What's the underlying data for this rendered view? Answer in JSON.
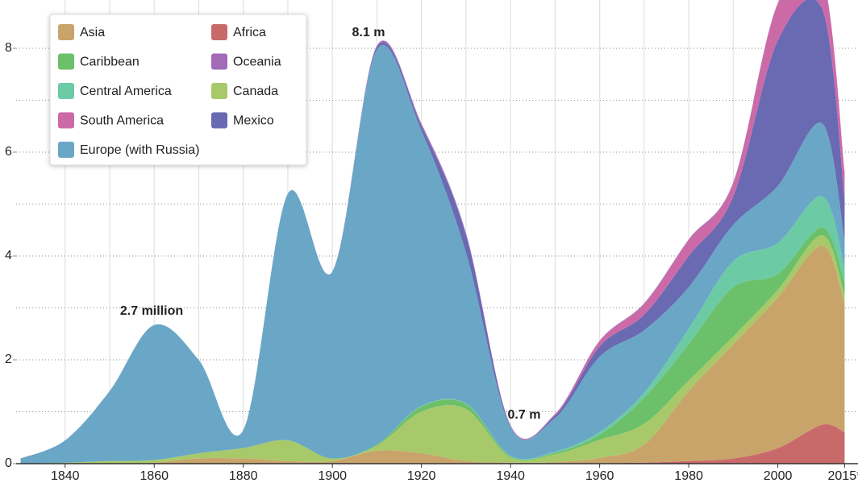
{
  "chart_data": {
    "type": "stacked-area",
    "x": [
      1830,
      1840,
      1850,
      1860,
      1870,
      1880,
      1890,
      1900,
      1910,
      1920,
      1930,
      1940,
      1950,
      1960,
      1970,
      1980,
      1990,
      2000,
      2010,
      2015
    ],
    "series": [
      {
        "name": "Asia",
        "color": "#c9a46a",
        "values": [
          0,
          0,
          0,
          0.02,
          0.1,
          0.1,
          0.05,
          0.05,
          0.25,
          0.2,
          0.05,
          0.02,
          0.03,
          0.1,
          0.35,
          1.35,
          2.2,
          2.9,
          3.45,
          2.5
        ]
      },
      {
        "name": "Caribbean",
        "color": "#6cc06a",
        "values": [
          0,
          0,
          0,
          0,
          0,
          0,
          0,
          0,
          0.02,
          0.1,
          0.1,
          0.02,
          0.03,
          0.1,
          0.5,
          0.7,
          0.95,
          0.3,
          0.15,
          0.25
        ]
      },
      {
        "name": "Central America",
        "color": "#6ccaa5",
        "values": [
          0,
          0,
          0,
          0,
          0,
          0,
          0,
          0,
          0,
          0.01,
          0.01,
          0.01,
          0.02,
          0.05,
          0.1,
          0.3,
          0.5,
          0.6,
          0.6,
          0.3
        ]
      },
      {
        "name": "South America",
        "color": "#cc6aa8",
        "values": [
          0,
          0,
          0,
          0,
          0,
          0,
          0,
          0,
          0,
          0.01,
          0.01,
          0.01,
          0.02,
          0.1,
          0.2,
          0.3,
          0.25,
          0.7,
          0.6,
          0.5
        ]
      },
      {
        "name": "Europe (with Russia)",
        "color": "#6aa7c6",
        "values": [
          0.1,
          0.43,
          1.35,
          2.6,
          1.8,
          0.35,
          4.75,
          3.6,
          7.6,
          5.3,
          2.9,
          0.55,
          0.65,
          1.45,
          1.2,
          0.8,
          0.7,
          1.1,
          1.4,
          0.5
        ]
      },
      {
        "name": "Africa",
        "color": "#c96a6a",
        "values": [
          0,
          0,
          0,
          0,
          0,
          0,
          0,
          0,
          0,
          0,
          0,
          0,
          0,
          0.01,
          0.02,
          0.05,
          0.1,
          0.3,
          0.75,
          0.6
        ]
      },
      {
        "name": "Oceania",
        "color": "#a36ab8",
        "values": [
          0,
          0,
          0,
          0,
          0,
          0,
          0,
          0,
          0.03,
          0.03,
          0.02,
          0.01,
          0.01,
          0.01,
          0.02,
          0.02,
          0.02,
          0.02,
          0.02,
          0.02
        ]
      },
      {
        "name": "Canada",
        "color": "#a8c96a",
        "values": [
          0,
          0.02,
          0.05,
          0.05,
          0.1,
          0.2,
          0.4,
          0.05,
          0.1,
          0.8,
          1.0,
          0.1,
          0.15,
          0.35,
          0.4,
          0.2,
          0.15,
          0.15,
          0.2,
          0.15
        ]
      },
      {
        "name": "Mexico",
        "color": "#6a6ab3",
        "values": [
          0,
          0,
          0,
          0,
          0,
          0,
          0,
          0,
          0.05,
          0.1,
          0.35,
          0.02,
          0.05,
          0.2,
          0.3,
          0.6,
          0.55,
          2.8,
          2.2,
          0.8
        ]
      }
    ],
    "annotations": [
      "2.7 million",
      "8.1 m",
      "0.7 m"
    ],
    "xlim": [
      1829,
      2018
    ],
    "xticks": [
      1840,
      1860,
      1880,
      1900,
      1920,
      1940,
      1960,
      1980,
      2000,
      {
        "value": 2015,
        "label": "2015*"
      }
    ],
    "xgrid": [
      1840,
      1850,
      1860,
      1870,
      1880,
      1890,
      1900,
      1910,
      1920,
      1930,
      1940,
      1950,
      1960,
      1970,
      1980,
      1990,
      2000,
      2010
    ],
    "ylim": [
      0,
      8.93
    ],
    "yticks": [
      0,
      2,
      4,
      6,
      8
    ],
    "ygrid": [
      1,
      2,
      3,
      4,
      5,
      6,
      7,
      8
    ]
  }
}
